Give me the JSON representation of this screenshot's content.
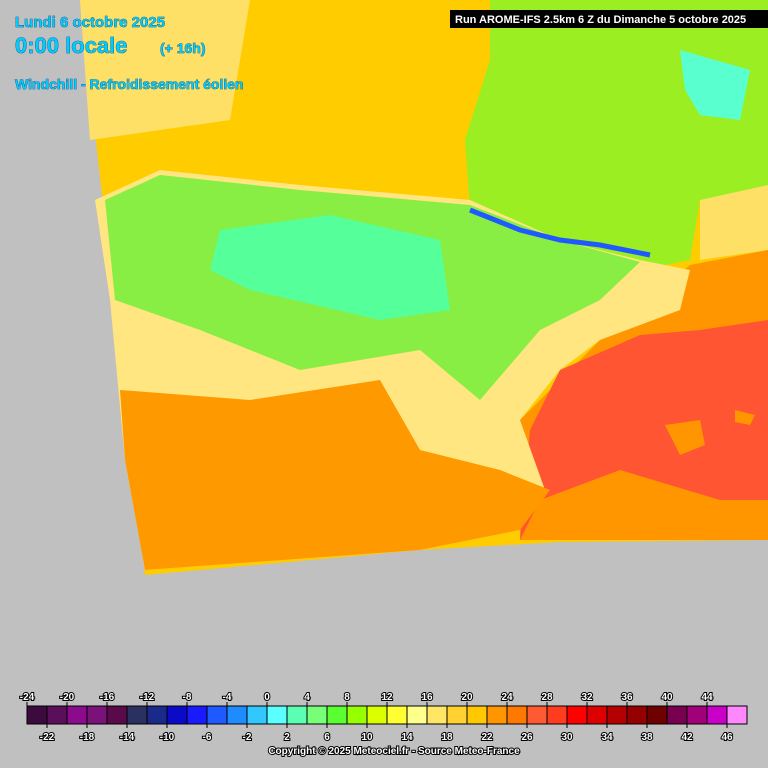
{
  "header": {
    "date": "Lundi 6 octobre 2025",
    "time": "0:00 locale",
    "lead": "(+ 16h)",
    "parameter": "Windchill - Refroidissement éolien",
    "run": "Run AROME-IFS 2.5km 6 Z du Dimanche 5 octobre 2025"
  },
  "legend": {
    "ticks": [
      -24,
      -22,
      -20,
      -18,
      -16,
      -14,
      -12,
      -10,
      -8,
      -6,
      -4,
      -2,
      0,
      2,
      4,
      6,
      8,
      10,
      12,
      14,
      16,
      18,
      20,
      22,
      24,
      26,
      28,
      30,
      32,
      34,
      36,
      38,
      40,
      42,
      44,
      46
    ],
    "colors": [
      "#3c0a3c",
      "#5a0f5a",
      "#8c0a8c",
      "#7a127a",
      "#5a0a4a",
      "#2a3060",
      "#1a2a8a",
      "#0a0ac8",
      "#1a1aff",
      "#1e5aff",
      "#1e8cff",
      "#32c8ff",
      "#5affff",
      "#5affb4",
      "#78ff78",
      "#5aff32",
      "#96ff00",
      "#dcff00",
      "#ffff32",
      "#ffff8c",
      "#ffe664",
      "#ffd232",
      "#ffc800",
      "#ff9600",
      "#ff7800",
      "#ff5a32",
      "#ff3c1e",
      "#ff0000",
      "#dc0000",
      "#b40000",
      "#960000",
      "#6e0000",
      "#78004e",
      "#a00078",
      "#c800c8",
      "#ff88ff"
    ]
  },
  "footer": {
    "copyright": "Copyright © 2025 Meteociel.fr - Source Meteo-France"
  }
}
